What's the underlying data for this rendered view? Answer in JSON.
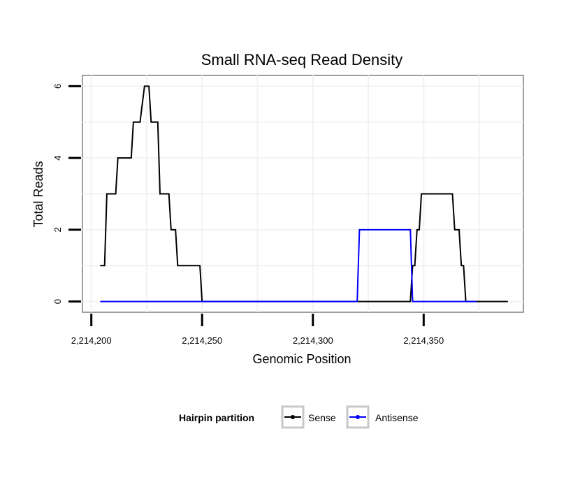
{
  "chart_data": {
    "type": "line",
    "title": "Small RNA-seq Read Density",
    "xlabel": "Genomic Position",
    "ylabel": "Total Reads",
    "xlim": [
      2214196,
      2214395
    ],
    "ylim": [
      -0.3,
      6.3
    ],
    "x_ticks": [
      2214200,
      2214250,
      2214300,
      2214350
    ],
    "x_tick_labels": [
      "2,214,200",
      "2,214,250",
      "2,214,300",
      "2,214,350"
    ],
    "y_ticks": [
      0,
      2,
      4,
      6
    ],
    "y_tick_labels": [
      "0",
      "2",
      "4",
      "6"
    ],
    "grid": true,
    "legend": {
      "title": "Hairpin partition",
      "position": "bottom",
      "entries": [
        "Sense",
        "Antisense"
      ]
    },
    "series": [
      {
        "name": "Sense",
        "color": "#000000",
        "points": [
          [
            2214204,
            1
          ],
          [
            2214206,
            1
          ],
          [
            2214207,
            3
          ],
          [
            2214211,
            3
          ],
          [
            2214212,
            4
          ],
          [
            2214218,
            4
          ],
          [
            2214219,
            5
          ],
          [
            2214222,
            5
          ],
          [
            2214224,
            6
          ],
          [
            2214226,
            6
          ],
          [
            2214227,
            5
          ],
          [
            2214230,
            5
          ],
          [
            2214231,
            3
          ],
          [
            2214235,
            3
          ],
          [
            2214236,
            2
          ],
          [
            2214238,
            2
          ],
          [
            2214239,
            1
          ],
          [
            2214249,
            1
          ],
          [
            2214250,
            0
          ],
          [
            2214344,
            0
          ],
          [
            2214345,
            1
          ],
          [
            2214346,
            1
          ],
          [
            2214347,
            2
          ],
          [
            2214348,
            2
          ],
          [
            2214349,
            3
          ],
          [
            2214363,
            3
          ],
          [
            2214364,
            2
          ],
          [
            2214366,
            2
          ],
          [
            2214367,
            1
          ],
          [
            2214368,
            1
          ],
          [
            2214369,
            0
          ],
          [
            2214388,
            0
          ]
        ]
      },
      {
        "name": "Antisense",
        "color": "#0000ff",
        "points": [
          [
            2214204,
            0
          ],
          [
            2214252,
            0
          ],
          [
            2214320,
            0
          ],
          [
            2214321,
            2
          ],
          [
            2214344,
            2
          ],
          [
            2214345,
            0
          ],
          [
            2214374,
            0
          ]
        ]
      }
    ]
  }
}
